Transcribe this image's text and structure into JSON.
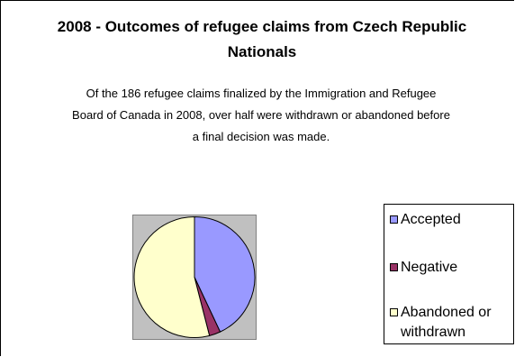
{
  "chart_data": {
    "type": "pie",
    "title": "2008 - Outcomes of refugee claims from Czech Republic Nationals",
    "subtitle": "Of the 186 refugee claims finalized by the Immigration and Refugee Board of Canada in 2008, over half were withdrawn or abandoned before a final decision was made.",
    "categories": [
      "Accepted",
      "Negative",
      "Abandoned or withdrawn"
    ],
    "values": [
      43,
      3,
      54
    ],
    "colors": [
      "#9999ff",
      "#993366",
      "#ffffcc"
    ],
    "legend_position": "right"
  }
}
